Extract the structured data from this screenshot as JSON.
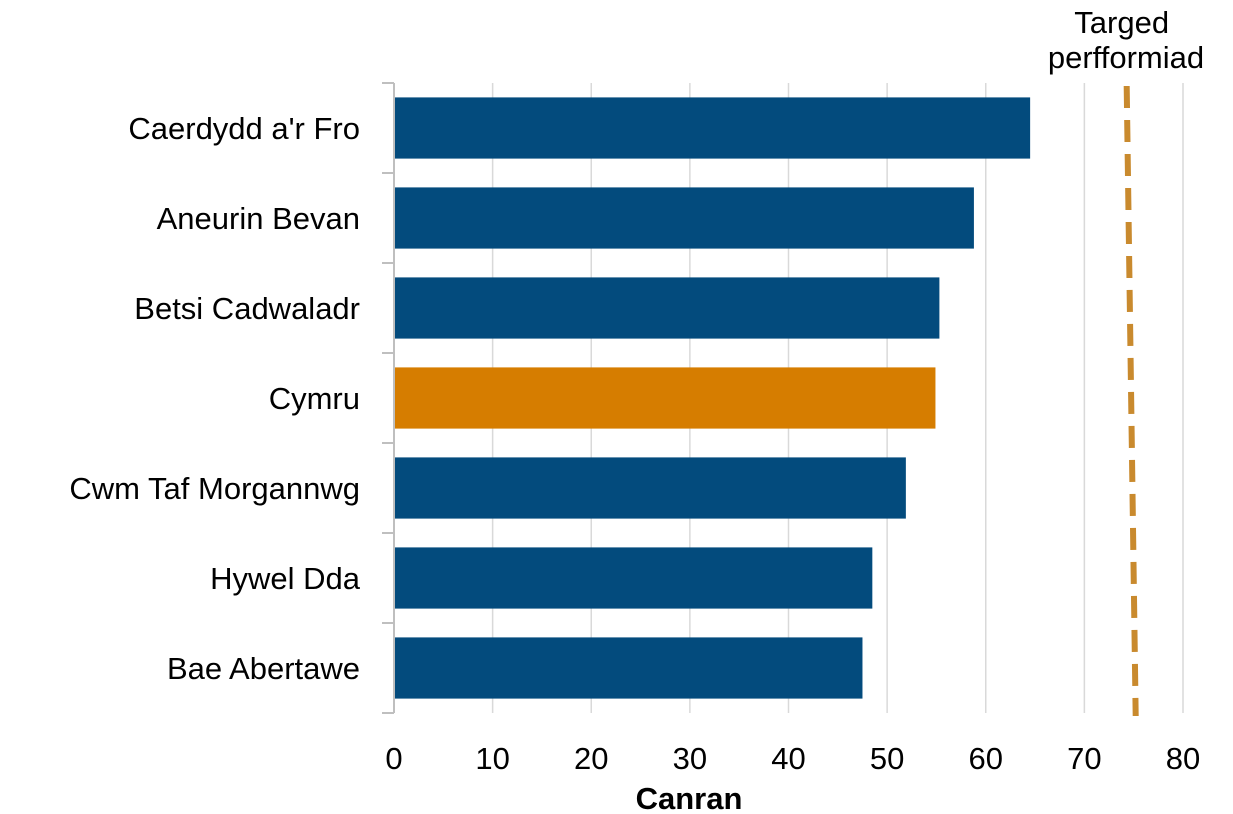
{
  "chart_data": {
    "type": "bar",
    "orientation": "horizontal",
    "categories": [
      "Caerdydd a'r Fro",
      "Aneurin Bevan",
      "Betsi Cadwaladr",
      "Cymru",
      "Cwm Taf Morgannwg",
      "Hywel Dda",
      "Bae Abertawe"
    ],
    "values": [
      64.5,
      58.8,
      55.3,
      54.9,
      51.9,
      48.5,
      47.5
    ],
    "highlight_category": "Cymru",
    "xlabel": "Canran",
    "ylabel": "",
    "xlim": [
      0,
      80
    ],
    "xticks": [
      "0",
      "10",
      "20",
      "30",
      "40",
      "50",
      "60",
      "70",
      "80"
    ],
    "grid": "vertical",
    "target": {
      "value": 75,
      "label_lines": [
        "Targed",
        "perfformiad"
      ]
    },
    "colors": {
      "bar": "#034b7d",
      "highlight": "#d67d00",
      "target_line": "#c98a2e",
      "grid": "#d9d9d9",
      "axis": "#bfbfbf"
    }
  }
}
